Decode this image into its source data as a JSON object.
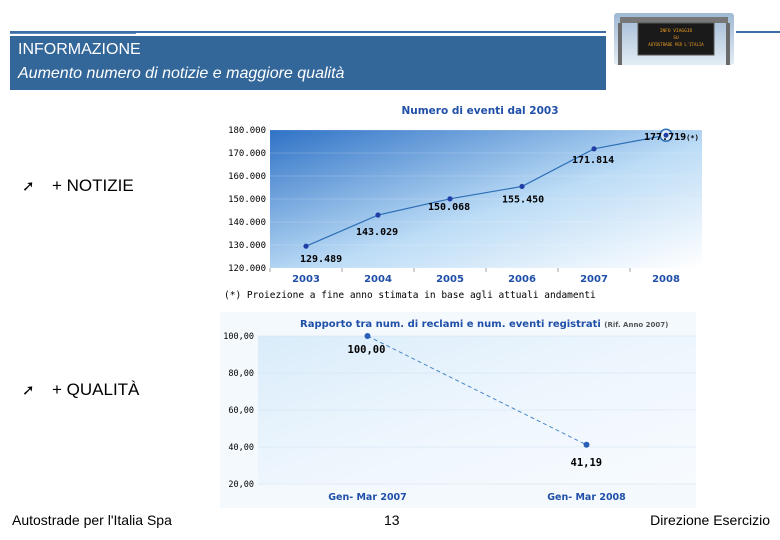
{
  "header": {
    "line1": "INFORMAZIONE",
    "line2": "Aumento numero di notizie e maggiore qualità"
  },
  "sign": {
    "text_lines": [
      "INFO VIAGGIO",
      "SU",
      "AUTOSTRADE PER L'ITALIA"
    ]
  },
  "bullets": [
    {
      "icon": "arrow-ne-icon",
      "label": "+ NOTIZIE"
    },
    {
      "icon": "arrow-ne-icon",
      "label": "+ QUALITÀ"
    }
  ],
  "note": "(*) Proiezione a fine anno stimata in base agli attuali andamenti",
  "chart_data": [
    {
      "type": "line",
      "title": "Numero di eventi dal 2003",
      "x": [
        "2003",
        "2004",
        "2005",
        "2006",
        "2007",
        "2008"
      ],
      "values": [
        129489,
        143029,
        150068,
        155450,
        171814,
        177719
      ],
      "data_labels": [
        "129.489",
        "143.029",
        "150.068",
        "155.450",
        "171.814",
        "177.719"
      ],
      "data_label_suffix": "(*)",
      "yticks": [
        "120.000",
        "130.000",
        "140.000",
        "150.000",
        "160.000",
        "170.000",
        "180.000"
      ],
      "ylim": [
        120000,
        180000
      ],
      "colors": {
        "line": "#2d6fb7",
        "point": "#1f3fa6",
        "title": "#1f4fa8",
        "bg_top": "#3b7fd0",
        "bg_bottom": "#ffffff"
      }
    },
    {
      "type": "line",
      "title": "Rapporto tra num. di reclami e num. eventi registrati",
      "title_suffix": "(Rif. Anno 2007)",
      "x": [
        "Gen- Mar 2007",
        "Gen- Mar 2008"
      ],
      "values": [
        100.0,
        41.19
      ],
      "data_labels": [
        "100,00",
        "41,19"
      ],
      "yticks": [
        "20,00",
        "40,00",
        "60,00",
        "80,00",
        "100,00"
      ],
      "ylim": [
        20,
        100
      ],
      "colors": {
        "line": "#4a86c8",
        "point": "#2a5fb8",
        "title": "#1f4fa8"
      }
    }
  ],
  "footer": {
    "left": "Autostrade per l'Italia Spa",
    "page": "13",
    "right": "Direzione Esercizio"
  }
}
